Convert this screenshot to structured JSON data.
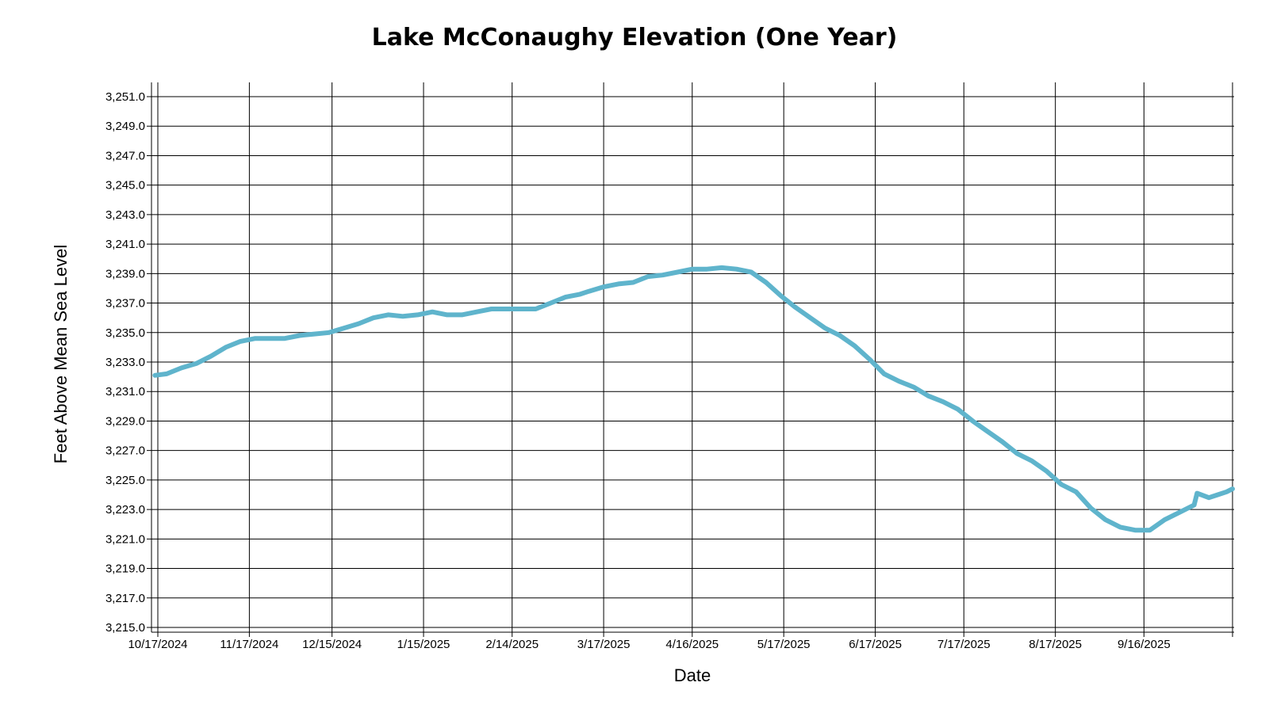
{
  "chart_data": {
    "type": "line",
    "title": "Lake McConaughy Elevation (One Year)",
    "xlabel": "Date",
    "ylabel": "Feet Above Mean Sea Level",
    "ylim": [
      3215.0,
      3252.0
    ],
    "xlim": [
      "2024-10-16",
      "2025-10-16"
    ],
    "grid": true,
    "line_color": "#5fb4cc",
    "x_ticks": [
      "2024-10-17",
      "2024-11-17",
      "2024-12-15",
      "2025-01-15",
      "2025-02-14",
      "2025-03-17",
      "2025-04-16",
      "2025-05-17",
      "2025-06-17",
      "2025-07-17",
      "2025-08-17",
      "2025-09-16",
      "2025-10-16"
    ],
    "x_tick_labels": [
      "10/17/2024",
      "11/17/2024",
      "12/15/2024",
      "1/15/2025",
      "2/14/2025",
      "3/17/2025",
      "4/16/2025",
      "5/17/2025",
      "6/17/2025",
      "7/17/2025",
      "8/17/2025",
      "9/16/2025",
      ""
    ],
    "y_ticks": [
      3215.0,
      3217.0,
      3219.0,
      3221.0,
      3223.0,
      3225.0,
      3227.0,
      3229.0,
      3231.0,
      3233.0,
      3235.0,
      3237.0,
      3239.0,
      3241.0,
      3243.0,
      3245.0,
      3247.0,
      3249.0,
      3251.0
    ],
    "y_tick_labels": [
      "3,215.0",
      "3,217.0",
      "3,219.0",
      "3,221.0",
      "3,223.0",
      "3,225.0",
      "3,227.0",
      "3,229.0",
      "3,231.0",
      "3,233.0",
      "3,235.0",
      "3,237.0",
      "3,239.0",
      "3,241.0",
      "3,243.0",
      "3,245.0",
      "3,247.0",
      "3,249.0",
      "3,251.0"
    ],
    "series": [
      {
        "x": [
          "2024-10-16",
          "2024-10-20",
          "2024-10-25",
          "2024-10-30",
          "2024-11-04",
          "2024-11-09",
          "2024-11-14",
          "2024-11-19",
          "2024-11-24",
          "2024-11-29",
          "2024-12-04",
          "2024-12-09",
          "2024-12-14",
          "2024-12-19",
          "2024-12-24",
          "2024-12-29",
          "2025-01-03",
          "2025-01-08",
          "2025-01-13",
          "2025-01-18",
          "2025-01-23",
          "2025-01-28",
          "2025-02-02",
          "2025-02-07",
          "2025-02-12",
          "2025-02-17",
          "2025-02-22",
          "2025-02-27",
          "2025-03-04",
          "2025-03-09",
          "2025-03-12",
          "2025-03-17",
          "2025-03-22",
          "2025-03-27",
          "2025-04-01",
          "2025-04-06",
          "2025-04-11",
          "2025-04-16",
          "2025-04-21",
          "2025-04-26",
          "2025-05-01",
          "2025-05-06",
          "2025-05-11",
          "2025-05-16",
          "2025-05-21",
          "2025-05-26",
          "2025-05-31",
          "2025-06-05",
          "2025-06-10",
          "2025-06-15",
          "2025-06-20",
          "2025-06-25",
          "2025-06-30",
          "2025-07-05",
          "2025-07-10",
          "2025-07-15",
          "2025-07-20",
          "2025-07-25",
          "2025-07-30",
          "2025-08-04",
          "2025-08-09",
          "2025-08-14",
          "2025-08-19",
          "2025-08-24",
          "2025-08-29",
          "2025-09-03",
          "2025-09-08",
          "2025-09-13",
          "2025-09-18",
          "2025-09-23",
          "2025-09-28",
          "2025-10-03",
          "2025-10-04",
          "2025-10-08",
          "2025-10-11",
          "2025-10-14",
          "2025-10-16"
        ],
        "values": [
          3232.1,
          3232.2,
          3232.6,
          3232.9,
          3233.4,
          3234.0,
          3234.4,
          3234.6,
          3234.6,
          3234.6,
          3234.8,
          3234.9,
          3235.0,
          3235.3,
          3235.6,
          3236.0,
          3236.2,
          3236.1,
          3236.2,
          3236.4,
          3236.2,
          3236.2,
          3236.4,
          3236.6,
          3236.6,
          3236.6,
          3236.6,
          3237.0,
          3237.4,
          3237.6,
          3237.8,
          3238.1,
          3238.3,
          3238.4,
          3238.8,
          3238.9,
          3239.1,
          3239.3,
          3239.3,
          3239.4,
          3239.3,
          3239.1,
          3238.4,
          3237.5,
          3236.7,
          3236.0,
          3235.3,
          3234.8,
          3234.1,
          3233.2,
          3232.2,
          3231.7,
          3231.3,
          3230.7,
          3230.3,
          3229.8,
          3229.0,
          3228.3,
          3227.6,
          3226.8,
          3226.3,
          3225.6,
          3224.7,
          3224.2,
          3223.1,
          3222.3,
          3221.8,
          3221.6,
          3221.6,
          3222.3,
          3222.8,
          3223.3,
          3224.1,
          3223.8,
          3224.0,
          3224.2,
          3224.4
        ]
      }
    ]
  }
}
